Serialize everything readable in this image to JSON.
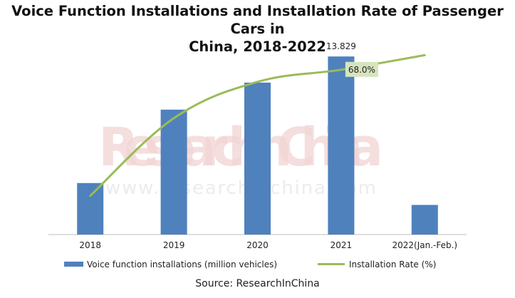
{
  "title_line1": "Voice Function Installations and Installation Rate of Passenger Cars in",
  "title_line2": "China, 2018-2022",
  "watermark": "ResearchInChina",
  "watermark_url": "www.researchinchina.com",
  "source": "Source: ResearchInChina",
  "colors": {
    "bar": "#4f81bd",
    "line": "#9bbb59",
    "label_bg": "#d6e5bd"
  },
  "chart_data": {
    "type": "bar",
    "title": "Voice Function Installations and Installation Rate of Passenger Cars in China, 2018-2022",
    "categories": [
      "2018",
      "2019",
      "2020",
      "2021",
      "2022(Jan.-Feb.)"
    ],
    "series": [
      {
        "name": "Voice function installations (million vehicles)",
        "type": "bar",
        "axis": "left",
        "values": [
          4.0,
          9.7,
          11.8,
          13.829,
          2.3
        ]
      },
      {
        "name": "Installation Rate (%)",
        "type": "line",
        "axis": "right",
        "values": [
          16,
          48,
          63,
          68.0,
          74
        ]
      }
    ],
    "data_labels": [
      {
        "series": 0,
        "index": 3,
        "text": "13.829"
      },
      {
        "series": 1,
        "index": 3,
        "text": "68.0%"
      }
    ],
    "ylim_left": [
      0,
      16
    ],
    "ylim_right": [
      0,
      85
    ],
    "legend": [
      "Voice function installations (million vehicles)",
      "Installation Rate (%)"
    ],
    "legend_position": "bottom",
    "grid": false
  }
}
